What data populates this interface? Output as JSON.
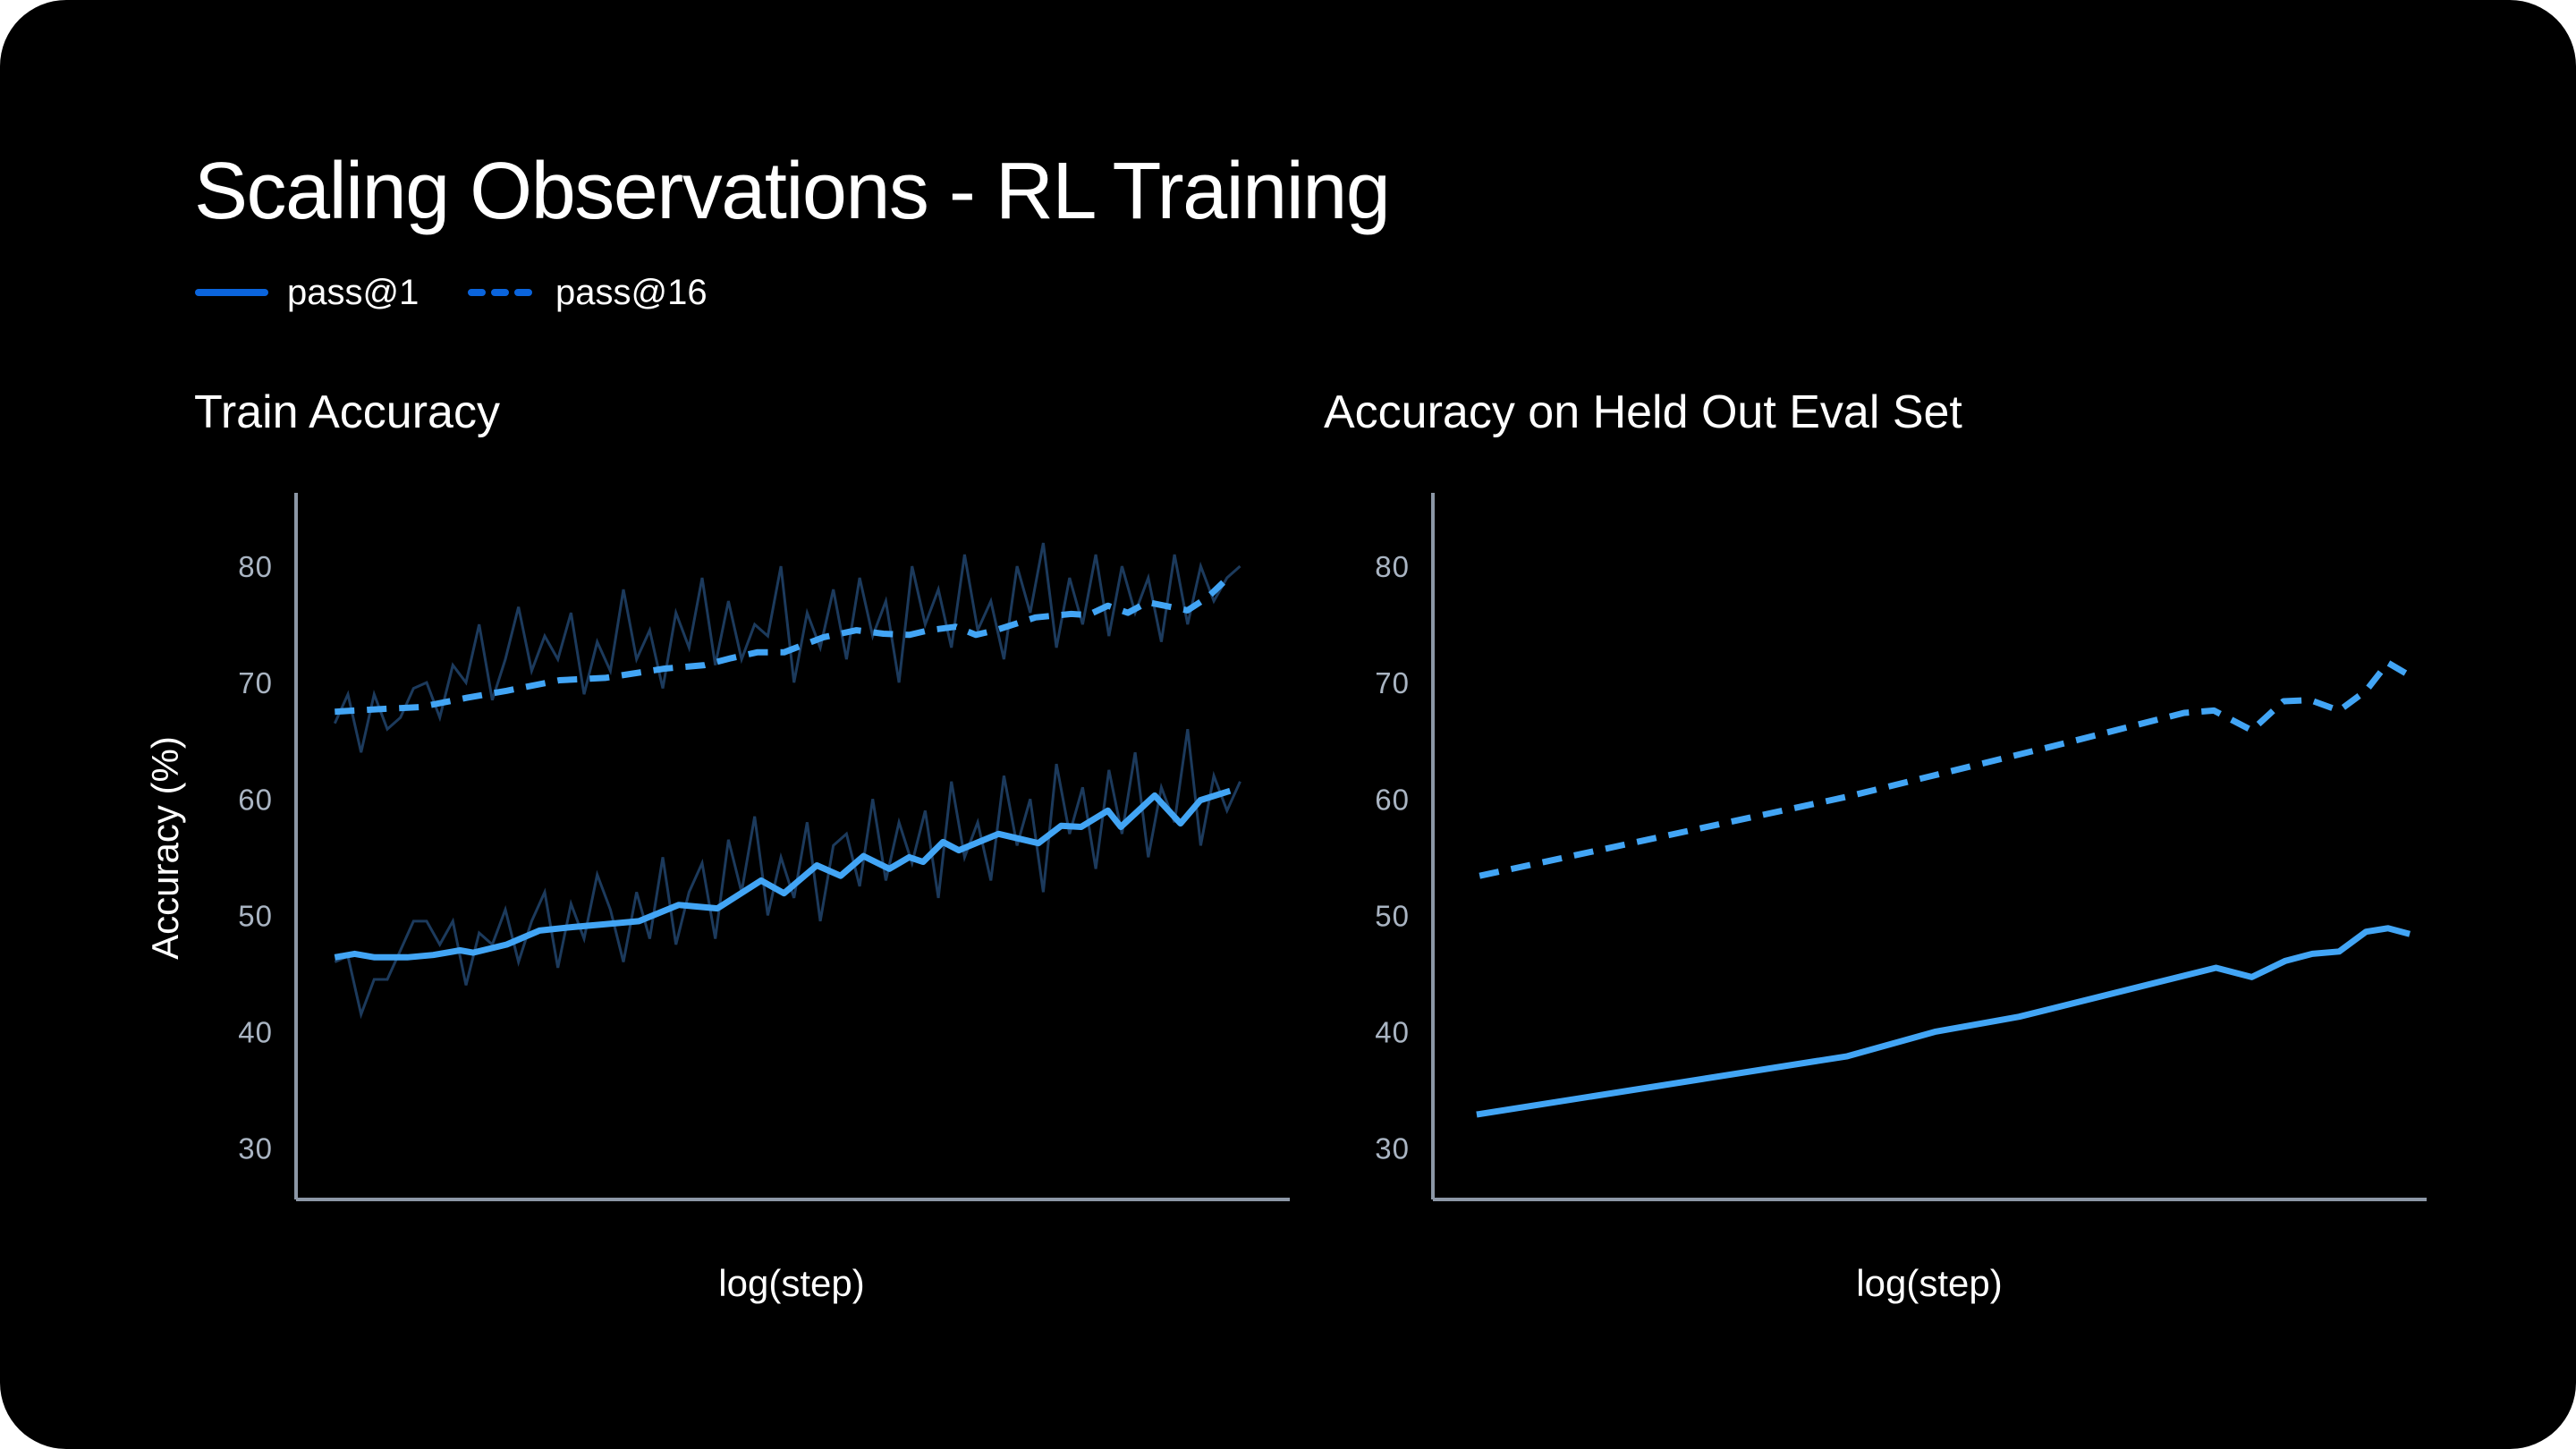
{
  "title": "Scaling Observations - RL Training",
  "legend": [
    {
      "label": "pass@1",
      "style": "solid"
    },
    {
      "label": "pass@16",
      "style": "dashed"
    }
  ],
  "colors": {
    "background": "#000000",
    "line": "#42a5f5",
    "raw_line": "#1c3a5c",
    "legend": "#0a64dc",
    "axis": "#8c97a6",
    "tick": "#a9b4c2"
  },
  "chart_data": [
    {
      "type": "line",
      "title": "Train Accuracy",
      "xlabel": "log(step)",
      "ylabel": "Accuracy (%)",
      "xlim": [
        0,
        1
      ],
      "ylim": [
        25.6,
        86.3
      ],
      "yticks": [
        30,
        40,
        50,
        60,
        70,
        80
      ],
      "grid": false,
      "series": [
        {
          "name": "pass@1",
          "style": "solid",
          "x": [
            0.039,
            0.059,
            0.079,
            0.112,
            0.138,
            0.165,
            0.178,
            0.212,
            0.245,
            0.278,
            0.305,
            0.345,
            0.385,
            0.424,
            0.468,
            0.491,
            0.524,
            0.548,
            0.571,
            0.597,
            0.617,
            0.631,
            0.651,
            0.667,
            0.687,
            0.707,
            0.747,
            0.77,
            0.79,
            0.817,
            0.83,
            0.864,
            0.89,
            0.91,
            0.94
          ],
          "y": [
            46.4,
            46.7,
            46.4,
            46.4,
            46.6,
            47.0,
            46.8,
            47.5,
            48.7,
            49.0,
            49.2,
            49.5,
            50.9,
            50.6,
            53.0,
            51.9,
            54.3,
            53.4,
            55.1,
            54.0,
            55.0,
            54.6,
            56.3,
            55.6,
            56.3,
            57.0,
            56.2,
            57.7,
            57.6,
            59.0,
            57.6,
            60.3,
            57.9,
            59.9,
            60.7
          ],
          "raw": [
            46,
            46.5,
            41.5,
            44.5,
            44.5,
            47,
            49.5,
            49.5,
            47.5,
            49.5,
            44,
            48.5,
            47.5,
            50.5,
            46,
            49.5,
            52,
            45.5,
            51,
            48,
            53.5,
            50.5,
            46,
            52,
            48,
            55,
            47.5,
            52,
            54.5,
            48,
            56.5,
            52,
            58.5,
            50,
            55,
            51.5,
            58,
            49.5,
            56,
            57,
            52.5,
            60,
            53,
            58,
            54.5,
            59,
            51.5,
            61.5,
            55,
            58,
            53,
            62,
            56,
            60,
            52,
            63,
            57,
            61,
            54,
            62.5,
            57,
            64,
            55,
            61,
            58,
            66,
            56,
            62,
            59,
            61.5
          ]
        },
        {
          "name": "pass@16",
          "style": "dashed",
          "x": [
            0.039,
            0.079,
            0.125,
            0.172,
            0.212,
            0.265,
            0.311,
            0.371,
            0.411,
            0.438,
            0.464,
            0.491,
            0.531,
            0.564,
            0.591,
            0.617,
            0.637,
            0.664,
            0.684,
            0.704,
            0.744,
            0.78,
            0.797,
            0.817,
            0.837,
            0.857,
            0.897,
            0.917,
            0.933
          ],
          "y": [
            67.5,
            67.7,
            67.9,
            68.7,
            69.3,
            70.2,
            70.4,
            71.2,
            71.5,
            72.1,
            72.6,
            72.6,
            73.9,
            74.5,
            74.2,
            74.1,
            74.5,
            74.8,
            74.1,
            74.5,
            75.6,
            75.9,
            75.8,
            76.6,
            76.0,
            76.9,
            76.2,
            77.3,
            78.6
          ],
          "raw": [
            66.5,
            69,
            64,
            69,
            66,
            67,
            69.5,
            70,
            67,
            71.5,
            70,
            75,
            68.5,
            72,
            76.5,
            71,
            74,
            72,
            76,
            69,
            73.5,
            71,
            78,
            72,
            74.5,
            69.5,
            76,
            73,
            79,
            71.5,
            77,
            72,
            75,
            74,
            80,
            70,
            76,
            73,
            78,
            72,
            79,
            74,
            77,
            70,
            80,
            75,
            78,
            73,
            81,
            74.5,
            77,
            72,
            80,
            76,
            82,
            73,
            79,
            75,
            81,
            74,
            80,
            76,
            79,
            73.5,
            81,
            75,
            80,
            77,
            79,
            80
          ]
        }
      ]
    },
    {
      "type": "line",
      "title": "Accuracy on Held Out Eval Set",
      "xlabel": "log(step)",
      "xlim": [
        0,
        1
      ],
      "ylim": [
        25.6,
        86.3
      ],
      "yticks": [
        30,
        40,
        50,
        60,
        70,
        80
      ],
      "grid": false,
      "series": [
        {
          "name": "pass@1",
          "style": "solid",
          "x": [
            0.044,
            0.417,
            0.505,
            0.59,
            0.788,
            0.824,
            0.858,
            0.885,
            0.912,
            0.939,
            0.961,
            0.983
          ],
          "y": [
            32.9,
            37.9,
            40.0,
            41.3,
            45.5,
            44.7,
            46.1,
            46.7,
            46.9,
            48.6,
            48.9,
            48.4
          ]
        },
        {
          "name": "pass@16",
          "style": "dashed",
          "x": [
            0.047,
            0.417,
            0.627,
            0.756,
            0.786,
            0.824,
            0.856,
            0.883,
            0.912,
            0.939,
            0.961,
            0.983
          ],
          "y": [
            53.4,
            60.2,
            64.6,
            67.4,
            67.6,
            65.9,
            68.4,
            68.5,
            67.6,
            69.3,
            71.7,
            70.6
          ]
        }
      ]
    }
  ]
}
